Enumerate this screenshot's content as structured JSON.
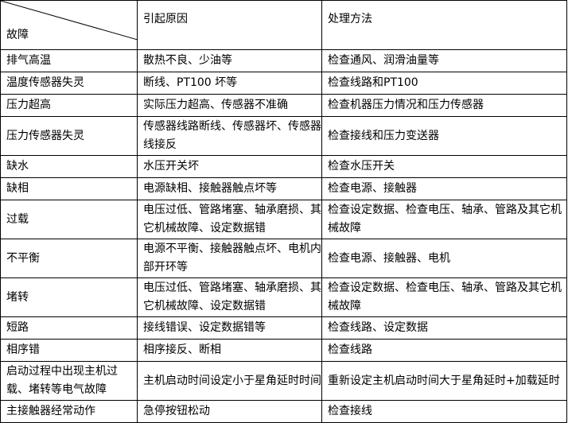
{
  "header": {
    "fault": "故障",
    "cause": "引起原因",
    "solution": "处理方法"
  },
  "rows": [
    {
      "fault": "排气高温",
      "cause": "散热不良、少油等",
      "solution": "检查通风、润滑油量等"
    },
    {
      "fault": "温度传感器失灵",
      "cause": "断线、PT100 坏等",
      "solution": "检查线路和PT100"
    },
    {
      "fault": "压力超高",
      "cause": "实际压力超高、传感器不准确",
      "solution": "检查机器压力情况和压力传感器"
    },
    {
      "fault": "压力传感器失灵",
      "cause": "传感器线路断线、传感器坏、传感器线接反",
      "solution": "检查接线和压力变送器"
    },
    {
      "fault": "缺水",
      "cause": "水压开关坏",
      "solution": "检查水压开关"
    },
    {
      "fault": "缺相",
      "cause": "电源缺相、接触器触点坏等",
      "solution": "检查电源、接触器"
    },
    {
      "fault": "过载",
      "cause": "电压过低、管路堵塞、轴承磨损、其它机械故障、设定数据错",
      "solution": "检查设定数据、检查电压、轴承、管路及其它机械故障"
    },
    {
      "fault": "不平衡",
      "cause": "电源不平衡、接触器触点坏、电机内部开环等",
      "solution": "检查电源、接触器、电机"
    },
    {
      "fault": "堵转",
      "cause": "电压过低、管路堵塞、轴承磨损、其它机械故障、设定数据错",
      "solution": "检查设定数据、检查电压、轴承、管路及其它机械故障"
    },
    {
      "fault": "短路",
      "cause": "接线错误、设定数据错等",
      "solution": "检查线路、设定数据"
    },
    {
      "fault": "相序错",
      "cause": "相序接反、断相",
      "solution": "检查线路"
    },
    {
      "fault": "启动过程中出现主机过载、堵转等电气故障",
      "cause": "主机启动时间设定小于星角延时时间",
      "solution": "重新设定主机启动时间大于星角延时+加载延时"
    },
    {
      "fault": "主接触器经常动作",
      "cause": "急停按钮松动",
      "solution": "检查接线"
    }
  ]
}
